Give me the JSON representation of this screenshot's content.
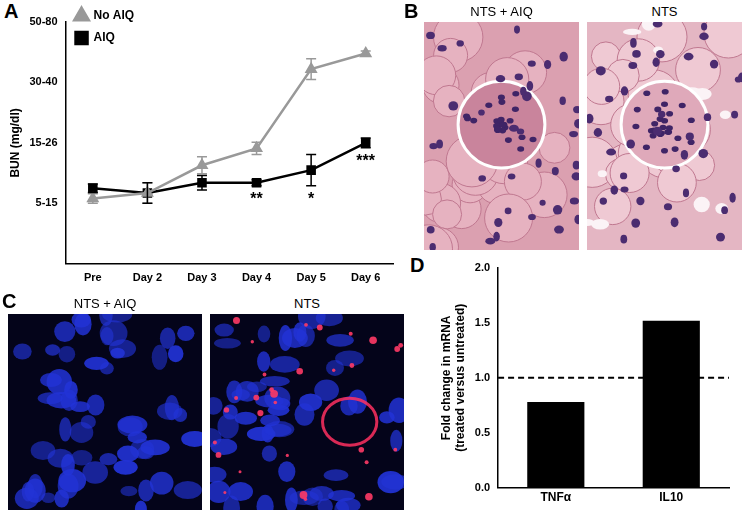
{
  "chart_data": [
    {
      "panel": "A",
      "type": "line",
      "y_label": "BUN (mg/dl)",
      "categories": [
        "Pre",
        "Day 2",
        "Day 3",
        "Day 4",
        "Day 5",
        "Day 6"
      ],
      "series": [
        {
          "name": "No AIQ",
          "color": "#999999",
          "marker": "triangle",
          "values": [
            1.08,
            1.17,
            1.63,
            1.91,
            3.22,
            3.48
          ],
          "errors": [
            0.08,
            0.17,
            0.14,
            0.1,
            0.17,
            0.04
          ]
        },
        {
          "name": "AIQ",
          "color": "#000000",
          "marker": "square",
          "values": [
            1.25,
            1.17,
            1.34,
            1.34,
            1.55,
            2.0
          ],
          "errors": [
            0.07,
            0.17,
            0.12,
            0.05,
            0.26,
            0.08
          ]
        }
      ],
      "ylim": [
        0,
        4
      ],
      "yticks": [
        {
          "value": 1,
          "label": "5-15"
        },
        {
          "value": 2,
          "label": "15-26"
        },
        {
          "value": 3,
          "label": "30-40"
        },
        {
          "value": 4,
          "label": "50-80"
        }
      ],
      "annotations": [
        {
          "x": "Day 4",
          "series": "AIQ",
          "text": "**"
        },
        {
          "x": "Day 5",
          "series": "AIQ",
          "text": "*"
        },
        {
          "x": "Day 6",
          "series": "AIQ",
          "text": "***"
        }
      ],
      "legend": "upper left",
      "grid": false
    },
    {
      "panel": "D",
      "type": "bar",
      "y_label": "Fold change in mRNA\n(treated versus untreated)",
      "categories": [
        "TNFα",
        "IL10"
      ],
      "values": [
        0.78,
        1.52
      ],
      "color": "#000000",
      "ylim": [
        0,
        2
      ],
      "yticks": [
        {
          "value": 0,
          "label": "0.0"
        },
        {
          "value": 0.5,
          "label": "0.5"
        },
        {
          "value": 1,
          "label": "1.0"
        },
        {
          "value": 1.5,
          "label": "1.5"
        },
        {
          "value": 2,
          "label": "2.0"
        }
      ],
      "reference_line": {
        "value": 1.0,
        "line_style": "dashed"
      },
      "grid": false
    }
  ],
  "images": [
    {
      "panel": "B",
      "captions": [
        "NTS + AIQ",
        "NTS"
      ]
    },
    {
      "panel": "C",
      "captions": [
        "NTS + AIQ",
        "NTS"
      ]
    }
  ]
}
